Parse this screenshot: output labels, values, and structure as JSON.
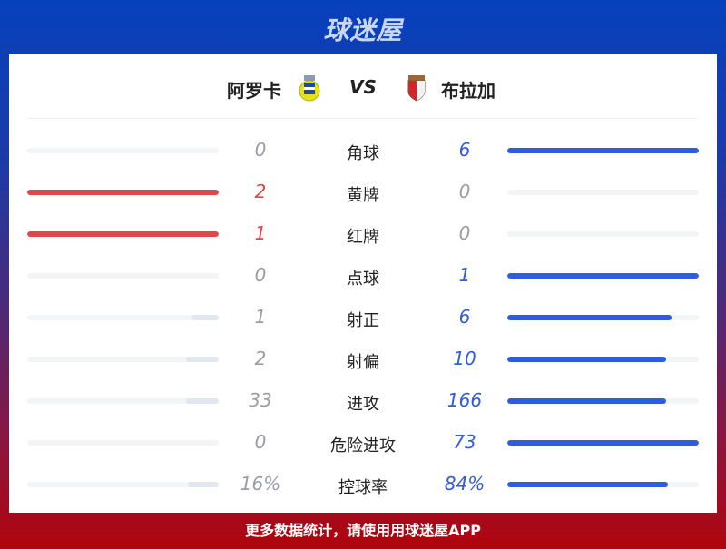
{
  "brand": "球迷屋",
  "home": {
    "name": "阿罗卡"
  },
  "away": {
    "name": "布拉加"
  },
  "vs": "VS",
  "colors": {
    "home": "#e0474c",
    "away": "#2f5be0",
    "loser_bar": "#e1e7f0",
    "loser_text": "#9a9ca8",
    "track": "#f3f4f6"
  },
  "stats": [
    {
      "label": "角球",
      "home": "0",
      "away": "6",
      "home_fill": 0,
      "away_fill": 1,
      "winner": "away"
    },
    {
      "label": "黄牌",
      "home": "2",
      "away": "0",
      "home_fill": 1,
      "away_fill": 0,
      "winner": "home"
    },
    {
      "label": "红牌",
      "home": "1",
      "away": "0",
      "home_fill": 1,
      "away_fill": 0,
      "winner": "home"
    },
    {
      "label": "点球",
      "home": "0",
      "away": "1",
      "home_fill": 0,
      "away_fill": 1,
      "winner": "away"
    },
    {
      "label": "射正",
      "home": "1",
      "away": "6",
      "home_fill": 0.14,
      "away_fill": 0.86,
      "winner": "away"
    },
    {
      "label": "射偏",
      "home": "2",
      "away": "10",
      "home_fill": 0.17,
      "away_fill": 0.83,
      "winner": "away"
    },
    {
      "label": "进攻",
      "home": "33",
      "away": "166",
      "home_fill": 0.17,
      "away_fill": 0.83,
      "winner": "away"
    },
    {
      "label": "危险进攻",
      "home": "0",
      "away": "73",
      "home_fill": 0,
      "away_fill": 1,
      "winner": "away"
    },
    {
      "label": "控球率",
      "home": "16%",
      "away": "84%",
      "home_fill": 0.16,
      "away_fill": 0.84,
      "winner": "away"
    }
  ],
  "footer": "更多数据统计，请使用用球迷屋APP"
}
